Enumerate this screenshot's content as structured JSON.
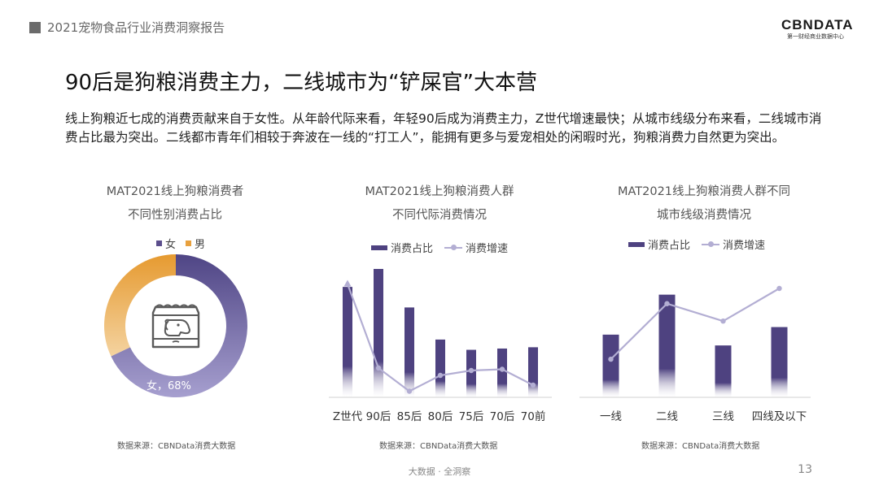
{
  "header": {
    "report_title": "2021宠物食品行业消费洞察报告",
    "logo_main": "CBNDATA",
    "logo_sub": "第一财经商业数据中心"
  },
  "title": "90后是狗粮消费主力，二线城市为“铲屎官”大本营",
  "description": "线上狗粮近七成的消费贡献来自于女性。从年龄代际来看，年轻90后成为消费主力，Z世代增速最快；从城市线级分布来看，二线城市消费占比最为突出。二线都市青年们相较于奔波在一线的“打工人”，能拥有更多与爱宠相处的闲暇时光，狗粮消费力自然更为突出。",
  "footer": {
    "text": "大数据 · 全洞察",
    "page": "13"
  },
  "colors": {
    "female": "#5b4e8c",
    "male": "#e8a13e",
    "bar": "#4e4280",
    "line": "#b3aed3"
  },
  "chart_data": [
    {
      "type": "pie",
      "title_line1": "MAT2021线上狗粮消费者",
      "title_line2": "不同性别消费占比",
      "legend": [
        "女",
        "男"
      ],
      "slices": [
        {
          "label": "女",
          "value": 68
        },
        {
          "label": "男",
          "value": 32
        }
      ],
      "data_label": "女，68%",
      "center_icon": "dog-food-bag-icon",
      "source": "数据来源：CBNData消费大数据"
    },
    {
      "type": "bar",
      "title_line1": "MAT2021线上狗粮消费人群",
      "title_line2": "不同代际消费情况",
      "legend": [
        "消费占比",
        "消费增速"
      ],
      "categories": [
        "Z世代",
        "90后",
        "85后",
        "80后",
        "75后",
        "70后",
        "70前"
      ],
      "series": [
        {
          "name": "消费占比",
          "type": "bar",
          "values": [
            0.86,
            1.0,
            0.7,
            0.45,
            0.37,
            0.38,
            0.39
          ]
        },
        {
          "name": "消费增速",
          "type": "line",
          "values": [
            0.93,
            0.24,
            0.05,
            0.18,
            0.22,
            0.23,
            0.1
          ]
        }
      ],
      "ylim": [
        0,
        1
      ],
      "source": "数据来源：CBNData消费大数据"
    },
    {
      "type": "bar",
      "title_line1": "MAT2021线上狗粮消费人群不同",
      "title_line2": "城市线级消费情况",
      "legend": [
        "消费占比",
        "消费增速"
      ],
      "categories": [
        "一线",
        "二线",
        "三线",
        "四线及以下"
      ],
      "series": [
        {
          "name": "消费占比",
          "type": "bar",
          "values": [
            0.58,
            0.95,
            0.48,
            0.65
          ]
        },
        {
          "name": "消费增速",
          "type": "line",
          "values": [
            0.35,
            0.86,
            0.7,
            1.0
          ]
        }
      ],
      "ylim": [
        0,
        1
      ],
      "source": "数据来源：CBNData消费大数据"
    }
  ]
}
